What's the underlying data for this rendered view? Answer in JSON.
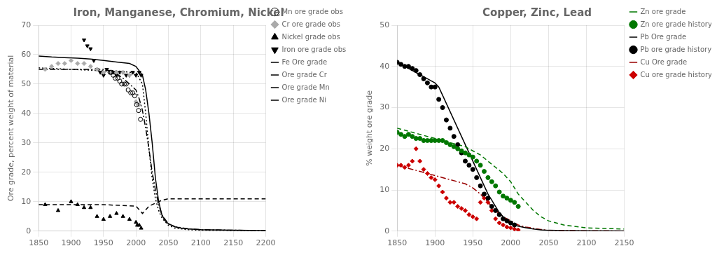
{
  "chart_data": [
    {
      "type": "scatter",
      "title": "Iron, Manganese, Chromium, Nickel",
      "ylabel": "Ore grade, percent weight of material",
      "xlim": [
        1850,
        2200
      ],
      "ylim": [
        0,
        70
      ],
      "xticks": [
        1850,
        1900,
        1950,
        2000,
        2050,
        2100,
        2150,
        2200
      ],
      "yticks": [
        0,
        10,
        20,
        30,
        40,
        50,
        60,
        70
      ],
      "grid": true,
      "legend": "right",
      "series": [
        {
          "name": "Mn ore grade obs",
          "type": "scatter",
          "marker": "circle-open",
          "color": "#000000",
          "x": [
            1960,
            1962,
            1965,
            1968,
            1972,
            1975,
            1978,
            1982,
            1985,
            1988,
            1992,
            1995,
            1998,
            2001,
            2004,
            2007
          ],
          "values": [
            54,
            54,
            53,
            52,
            52,
            51,
            50,
            50,
            50,
            48,
            47,
            47,
            46,
            43,
            41,
            38
          ]
        },
        {
          "name": "Cr ore grade obs",
          "type": "scatter",
          "marker": "diamond",
          "color": "#aaaaaa",
          "x": [
            1860,
            1870,
            1880,
            1890,
            1900,
            1910,
            1920,
            1930,
            1940,
            1950,
            1960,
            1970,
            1980,
            1990,
            2000,
            2003,
            2005
          ],
          "values": [
            55,
            56,
            57,
            57,
            58,
            57,
            57,
            56,
            55,
            54,
            54,
            54,
            54,
            53,
            44,
            43,
            43
          ]
        },
        {
          "name": "Nickel grade obs",
          "type": "scatter",
          "marker": "triangle-up",
          "color": "#000000",
          "x": [
            1860,
            1880,
            1900,
            1910,
            1920,
            1930,
            1940,
            1950,
            1960,
            1970,
            1980,
            1990,
            2000,
            2002,
            2005,
            2008
          ],
          "values": [
            9,
            7,
            10,
            9,
            8,
            8,
            5,
            4,
            5,
            6,
            5,
            4,
            3,
            2,
            2,
            1
          ]
        },
        {
          "name": "Iron ore grade obs",
          "type": "scatter",
          "marker": "triangle-down",
          "color": "#000000",
          "x": [
            1920,
            1925,
            1930,
            1935,
            1940,
            1945,
            1950,
            1955,
            1960,
            1965,
            1970,
            1975,
            1980,
            1985,
            1990,
            1995,
            2000,
            2005,
            2008
          ],
          "values": [
            65,
            63,
            62,
            58,
            55,
            54,
            53,
            55,
            54,
            54,
            53,
            54,
            54,
            53,
            53,
            54,
            53,
            54,
            53
          ]
        },
        {
          "name": "Fe Ore grade",
          "type": "line",
          "line_style": "solid",
          "color": "#000000",
          "x": [
            1850,
            1870,
            1890,
            1910,
            1930,
            1950,
            1970,
            1990,
            2000,
            2010,
            2015,
            2020,
            2025,
            2030,
            2035,
            2040,
            2045,
            2050,
            2060,
            2070,
            2080,
            2100,
            2150,
            2200
          ],
          "values": [
            59.5,
            59.2,
            59.0,
            58.8,
            58.5,
            58.0,
            57.5,
            57.0,
            56.0,
            53.0,
            48.0,
            40.0,
            30.0,
            18.0,
            10.0,
            5.5,
            3.5,
            2.5,
            1.5,
            1.0,
            0.8,
            0.5,
            0.3,
            0.2
          ]
        },
        {
          "name": "Ore grade Cr",
          "type": "line",
          "line_style": "dotted",
          "color": "#000000",
          "x": [
            1850,
            1900,
            1950,
            1970,
            1990,
            2000,
            2010,
            2015,
            2020,
            2025,
            2030,
            2035,
            2040,
            2050,
            2060,
            2080,
            2100,
            2150,
            2200
          ],
          "values": [
            55.5,
            55.0,
            54.5,
            54.5,
            54.0,
            54.0,
            50.0,
            40.0,
            28.0,
            18.0,
            11.0,
            7.0,
            4.5,
            2.0,
            1.0,
            0.5,
            0.3,
            0.2,
            0.1
          ]
        },
        {
          "name": "Ore grade Mn",
          "type": "line",
          "line_style": "dashdot",
          "color": "#000000",
          "x": [
            1850,
            1900,
            1950,
            1960,
            1970,
            1980,
            1990,
            2000,
            2005,
            2010,
            2015,
            2020,
            2025,
            2030,
            2035,
            2040,
            2050,
            2060,
            2080,
            2100,
            2150,
            2200
          ],
          "values": [
            55.0,
            55.0,
            55.0,
            54.5,
            53.5,
            52.0,
            50.0,
            48.0,
            45.0,
            41.0,
            35.0,
            28.0,
            20.0,
            14.0,
            9.0,
            5.5,
            2.5,
            1.5,
            0.8,
            0.5,
            0.3,
            0.2
          ]
        },
        {
          "name": "Ore grade Ni",
          "type": "line",
          "line_style": "dashed",
          "color": "#000000",
          "x": [
            1850,
            1900,
            1950,
            2000,
            2010,
            2020,
            2030,
            2040,
            2050,
            2060,
            2100,
            2150,
            2200
          ],
          "values": [
            9.0,
            9.0,
            9.0,
            8.5,
            6.0,
            8.5,
            9.5,
            10.5,
            11.0,
            11.0,
            11.0,
            11.0,
            11.0
          ]
        }
      ]
    },
    {
      "type": "scatter",
      "title": "Copper, Zinc, Lead",
      "ylabel": "% weight ore grade",
      "xlim": [
        1850,
        2150
      ],
      "ylim": [
        0,
        50
      ],
      "xticks": [
        1850,
        1900,
        1950,
        2000,
        2050,
        2100,
        2150
      ],
      "yticks": [
        0,
        10,
        20,
        30,
        40,
        50
      ],
      "grid": true,
      "legend": "right",
      "series": [
        {
          "name": "Zn ore grade",
          "type": "line",
          "line_style": "dashed",
          "color": "#007700",
          "x": [
            1850,
            1860,
            1870,
            1880,
            1890,
            1900,
            1910,
            1920,
            1930,
            1940,
            1950,
            1960,
            1970,
            1980,
            1990,
            2000,
            2005,
            2010,
            2020,
            2030,
            2040,
            2050,
            2070,
            2100,
            2150
          ],
          "values": [
            25,
            24.5,
            24,
            23.5,
            23,
            22.5,
            22,
            21.5,
            21,
            20.5,
            19.5,
            18.5,
            17,
            15.5,
            14,
            12,
            10.5,
            9,
            7,
            5,
            3.5,
            2.5,
            1.5,
            0.8,
            0.5
          ]
        },
        {
          "name": "Zn ore grade history",
          "type": "scatter",
          "marker": "circle",
          "color": "#007700",
          "x": [
            1850,
            1855,
            1860,
            1865,
            1870,
            1875,
            1880,
            1885,
            1890,
            1895,
            1900,
            1905,
            1910,
            1915,
            1920,
            1925,
            1930,
            1935,
            1940,
            1945,
            1950,
            1955,
            1960,
            1965,
            1970,
            1975,
            1980,
            1985,
            1990,
            1995,
            2000,
            2005,
            2010
          ],
          "values": [
            24,
            23.5,
            23,
            23.5,
            23,
            22.5,
            22.5,
            22,
            22,
            22,
            22,
            22,
            22,
            21.5,
            21,
            20.5,
            20,
            19.5,
            19,
            18.5,
            18,
            17,
            16,
            14.5,
            13,
            12,
            11,
            9.5,
            8.5,
            8,
            7.5,
            7,
            6
          ]
        },
        {
          "name": "Pb Ore grade",
          "type": "line",
          "line_style": "solid",
          "color": "#000000",
          "x": [
            1850,
            1855,
            1860,
            1865,
            1870,
            1875,
            1880,
            1885,
            1890,
            1895,
            1900,
            1905,
            1910,
            1915,
            1920,
            1925,
            1930,
            1935,
            1940,
            1945,
            1950,
            1955,
            1960,
            1965,
            1970,
            1975,
            1980,
            1985,
            1990,
            1995,
            2000,
            2005,
            2010,
            2020,
            2030,
            2040,
            2050,
            2070,
            2100,
            2150
          ],
          "values": [
            41,
            40.5,
            40,
            39.5,
            39,
            38.5,
            38,
            37.5,
            37,
            36.5,
            36,
            35,
            33,
            31,
            29,
            27,
            25,
            23,
            21,
            19,
            17,
            15,
            13,
            11,
            9,
            7.5,
            6,
            4.5,
            3.5,
            2.5,
            2.0,
            1.5,
            1.2,
            0.8,
            0.5,
            0.3,
            0.2,
            0.15,
            0.1,
            0.05
          ]
        },
        {
          "name": "Pb ore grade history",
          "type": "scatter",
          "marker": "circle",
          "color": "#000000",
          "x": [
            1850,
            1855,
            1860,
            1865,
            1870,
            1875,
            1880,
            1885,
            1890,
            1895,
            1900,
            1905,
            1910,
            1915,
            1920,
            1925,
            1930,
            1935,
            1940,
            1945,
            1950,
            1955,
            1960,
            1965,
            1970,
            1975,
            1980,
            1985,
            1990,
            1995,
            2000,
            2005
          ],
          "values": [
            41,
            40.5,
            40,
            40,
            39.5,
            39,
            38,
            37,
            36,
            35,
            35,
            32,
            30,
            27,
            25,
            23,
            21,
            19,
            17,
            16,
            15,
            13,
            11,
            9,
            8,
            6,
            5,
            4,
            3,
            2.5,
            2,
            1.5
          ]
        },
        {
          "name": "Cu Ore grade",
          "type": "line",
          "line_style": "dashdot",
          "color": "#990000",
          "x": [
            1850,
            1860,
            1870,
            1880,
            1890,
            1900,
            1910,
            1920,
            1930,
            1940,
            1950,
            1960,
            1970,
            1980,
            1990,
            2000,
            2010,
            2020,
            2030,
            2040,
            2050,
            2070,
            2100,
            2150
          ],
          "values": [
            16,
            15.5,
            15,
            14.5,
            14,
            13.5,
            13,
            12.5,
            12,
            11.5,
            10.5,
            9,
            7,
            5,
            3.5,
            2.5,
            1.5,
            1.0,
            0.7,
            0.4,
            0.2,
            0.1,
            0.05,
            0.02
          ]
        },
        {
          "name": "Cu ore grade history",
          "type": "scatter",
          "marker": "diamond",
          "color": "#cc0000",
          "x": [
            1850,
            1855,
            1860,
            1865,
            1870,
            1875,
            1880,
            1885,
            1890,
            1895,
            1900,
            1905,
            1910,
            1915,
            1920,
            1925,
            1930,
            1935,
            1940,
            1945,
            1950,
            1955,
            1960,
            1965,
            1970,
            1975,
            1980,
            1985,
            1990,
            1995,
            2000,
            2005,
            2010
          ],
          "values": [
            16,
            16,
            15.5,
            16,
            17,
            20,
            17,
            15,
            14,
            13,
            12.5,
            11,
            9.5,
            8,
            7,
            7,
            6,
            5.5,
            5,
            4,
            3.5,
            3,
            7,
            8,
            7,
            5,
            3,
            2,
            1.5,
            1,
            0.8,
            0.5,
            0.3
          ]
        }
      ]
    }
  ]
}
